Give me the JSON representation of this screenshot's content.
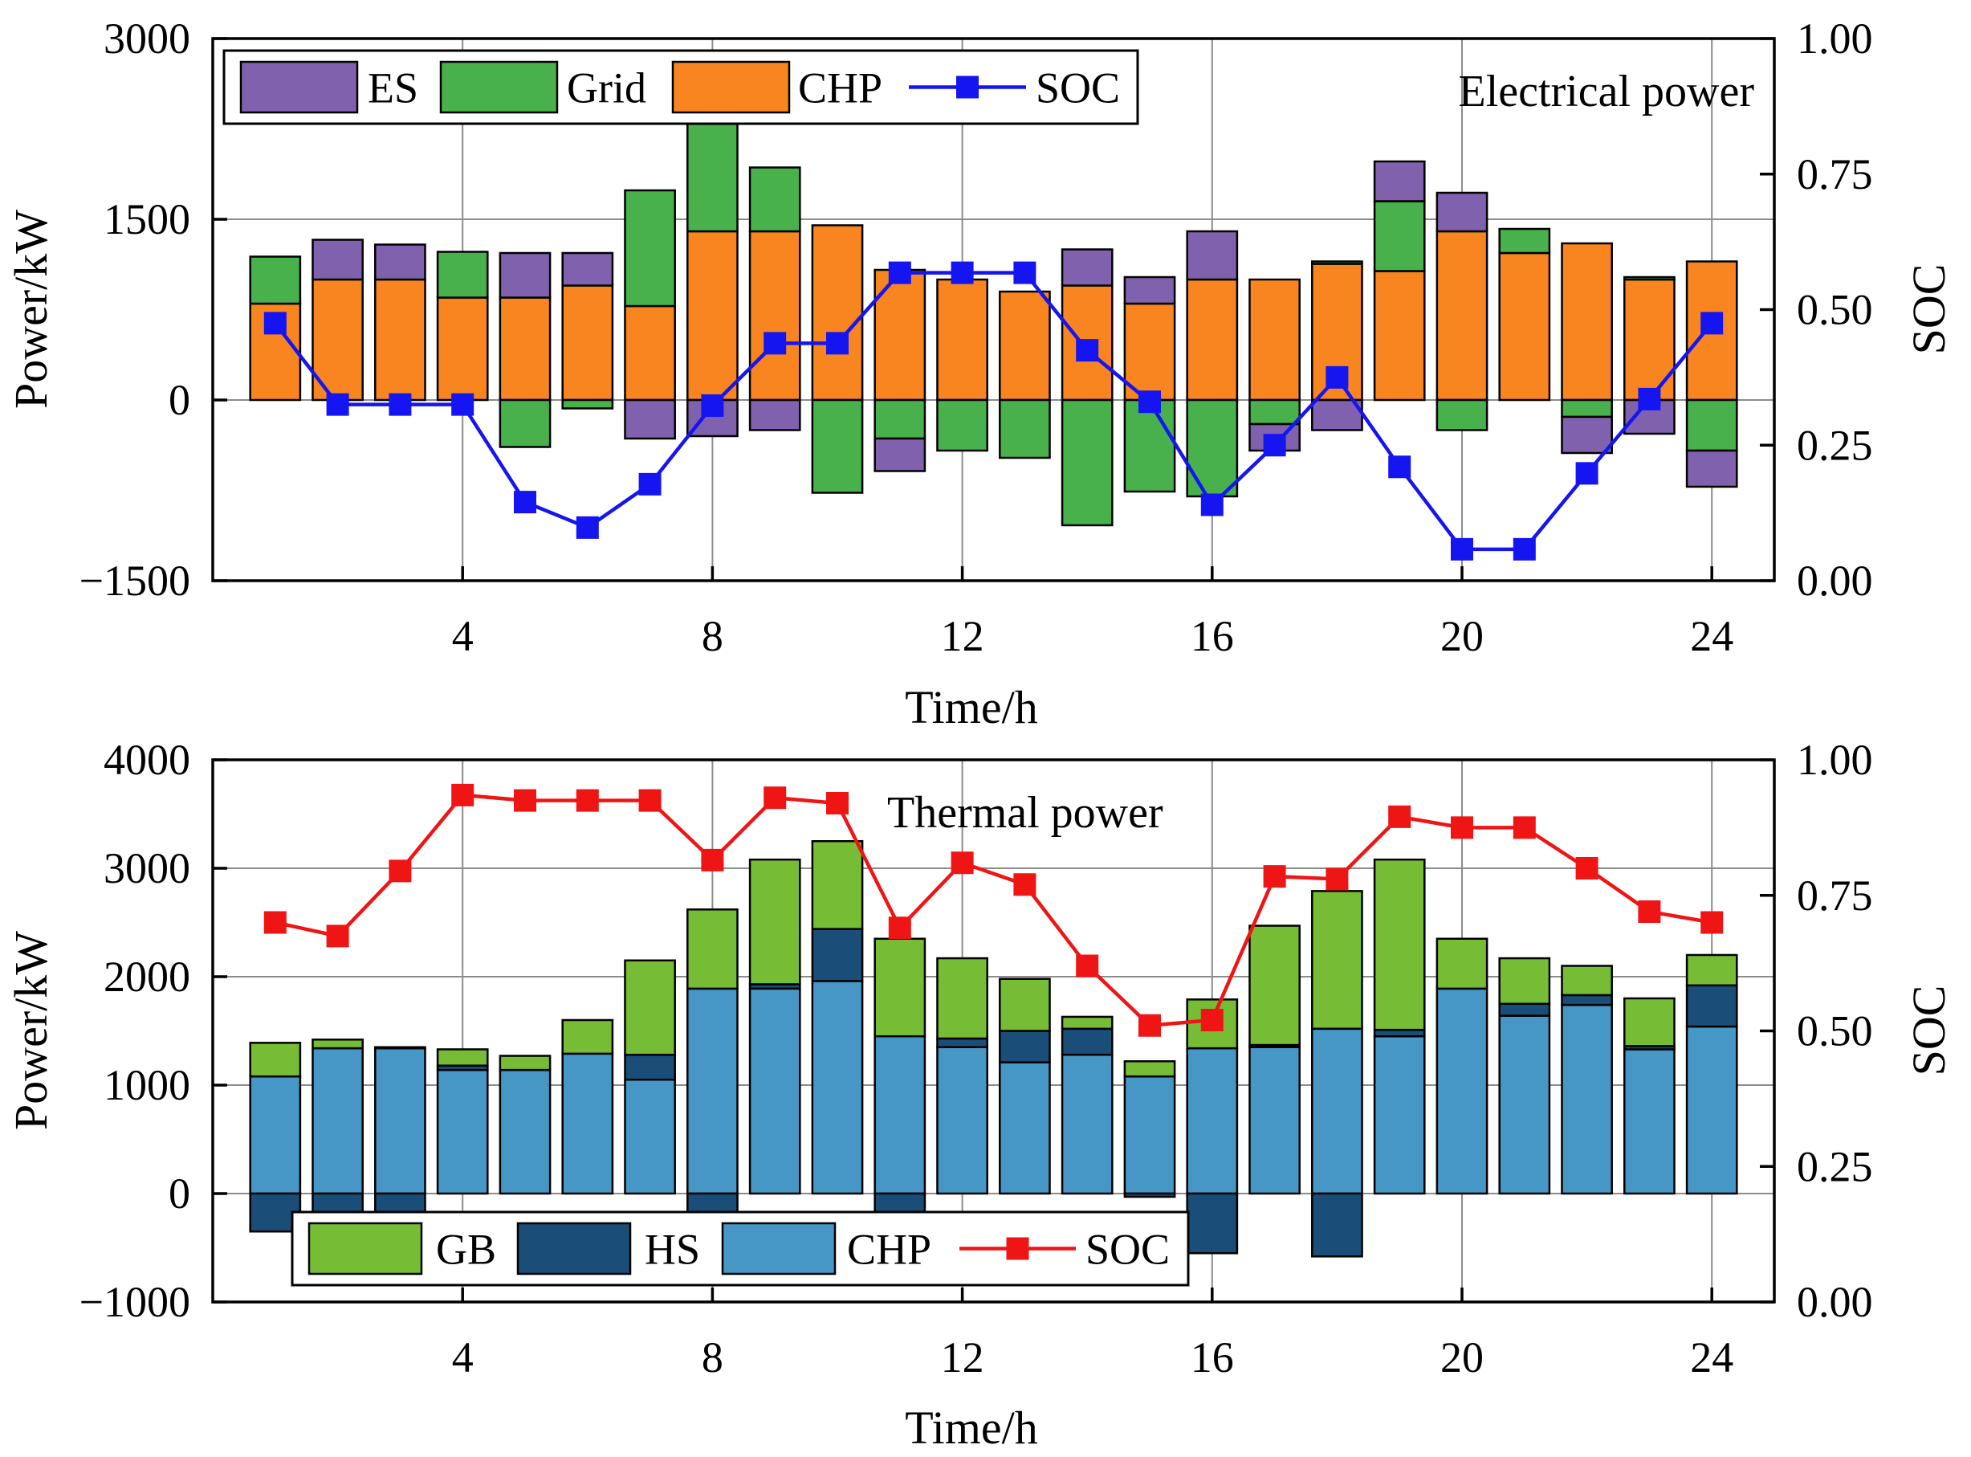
{
  "chart_data": [
    {
      "type": "bar",
      "stacking": "stacked",
      "annotation": "Electrical power",
      "xlabel": "Time/h",
      "ylabel": "Power/kW",
      "y2label": "SOC",
      "xlim": [
        0,
        25
      ],
      "ylim": [
        -1500,
        3000
      ],
      "y2lim": [
        0,
        1
      ],
      "x_ticks": [
        4,
        8,
        12,
        16,
        20,
        24
      ],
      "y_ticks": [
        -1500,
        0,
        1500,
        3000
      ],
      "y_tick_labels": [
        "−1500",
        "0",
        "1500",
        "3000"
      ],
      "y2_ticks": [
        0,
        0.25,
        0.5,
        0.75,
        1
      ],
      "y2_tick_labels": [
        "0.00",
        "0.25",
        "0.50",
        "0.75",
        "1.00"
      ],
      "grid": true,
      "legend_position": "top-left",
      "x": [
        1,
        2,
        3,
        4,
        5,
        6,
        7,
        8,
        9,
        10,
        11,
        12,
        13,
        14,
        15,
        16,
        17,
        18,
        19,
        20,
        21,
        22,
        23,
        24
      ],
      "series": [
        {
          "name": "CHP",
          "color": "#f98521",
          "role": "bar",
          "values": [
            800,
            1000,
            1000,
            850,
            850,
            950,
            780,
            1400,
            1400,
            1450,
            1080,
            1000,
            900,
            950,
            800,
            1000,
            1000,
            1130,
            1070,
            1400,
            1220,
            1300,
            1000,
            1150
          ]
        },
        {
          "name": "Grid",
          "color": "#48b14c",
          "role": "bar",
          "values": [
            390,
            0,
            0,
            380,
            -390,
            -70,
            960,
            1000,
            530,
            -770,
            -320,
            -420,
            -480,
            -1040,
            -760,
            -800,
            -200,
            20,
            580,
            -250,
            200,
            -140,
            20,
            -420
          ]
        },
        {
          "name": "ES",
          "color": "#8061ad",
          "role": "bar",
          "values": [
            0,
            330,
            290,
            0,
            370,
            270,
            -320,
            -300,
            -250,
            0,
            -270,
            0,
            0,
            300,
            220,
            400,
            -220,
            -250,
            330,
            320,
            0,
            -300,
            -280,
            -300
          ]
        },
        {
          "name": "SOC",
          "color": "#1515f2",
          "role": "line",
          "marker": "square",
          "axis": "right",
          "values": [
            0.475,
            0.325,
            0.325,
            0.325,
            0.145,
            0.098,
            0.178,
            0.323,
            0.438,
            0.438,
            0.568,
            0.568,
            0.568,
            0.425,
            0.33,
            0.14,
            0.25,
            0.375,
            0.21,
            0.058,
            0.058,
            0.198,
            0.335,
            0.475
          ]
        }
      ],
      "legend": [
        "ES",
        "Grid",
        "CHP",
        "SOC"
      ]
    },
    {
      "type": "bar",
      "stacking": "stacked",
      "annotation": "Thermal power",
      "xlabel": "Time/h",
      "ylabel": "Power/kW",
      "y2label": "SOC",
      "xlim": [
        0,
        25
      ],
      "ylim": [
        -1000,
        4000
      ],
      "y2lim": [
        0,
        1
      ],
      "x_ticks": [
        4,
        8,
        12,
        16,
        20,
        24
      ],
      "y_ticks": [
        -1000,
        0,
        1000,
        2000,
        3000,
        4000
      ],
      "y_tick_labels": [
        "−1000",
        "0",
        "1000",
        "2000",
        "3000",
        "4000"
      ],
      "y2_ticks": [
        0,
        0.25,
        0.5,
        0.75,
        1
      ],
      "y2_tick_labels": [
        "0.00",
        "0.25",
        "0.50",
        "0.75",
        "1.00"
      ],
      "grid": true,
      "legend_position": "bottom-left",
      "x": [
        1,
        2,
        3,
        4,
        5,
        6,
        7,
        8,
        9,
        10,
        11,
        12,
        13,
        14,
        15,
        16,
        17,
        18,
        19,
        20,
        21,
        22,
        23,
        24
      ],
      "series": [
        {
          "name": "CHP",
          "color": "#4797c6",
          "role": "bar",
          "values": [
            1080,
            1340,
            1340,
            1140,
            1140,
            1290,
            1050,
            1890,
            1890,
            1960,
            1450,
            1350,
            1210,
            1280,
            1080,
            1340,
            1350,
            1520,
            1450,
            1890,
            1640,
            1740,
            1330,
            1540
          ]
        },
        {
          "name": "HS",
          "color": "#1a4e78",
          "role": "bar",
          "values": [
            -350,
            -230,
            -230,
            40,
            0,
            0,
            230,
            -230,
            40,
            480,
            -220,
            80,
            290,
            240,
            -30,
            -550,
            20,
            -580,
            60,
            0,
            110,
            90,
            30,
            380
          ]
        },
        {
          "name": "GB",
          "color": "#76bd35",
          "role": "bar",
          "values": [
            310,
            80,
            10,
            150,
            130,
            310,
            870,
            730,
            1150,
            810,
            900,
            740,
            480,
            110,
            140,
            450,
            1100,
            1270,
            1570,
            460,
            420,
            270,
            440,
            280
          ]
        },
        {
          "name": "SOC",
          "color": "#f01515",
          "role": "line",
          "marker": "square",
          "axis": "right",
          "values": [
            0.7,
            0.675,
            0.795,
            0.935,
            0.925,
            0.925,
            0.925,
            0.815,
            0.93,
            0.92,
            0.69,
            0.81,
            0.77,
            0.62,
            0.51,
            0.52,
            0.785,
            0.78,
            0.895,
            0.875,
            0.875,
            0.8,
            0.72,
            0.7
          ]
        }
      ],
      "legend": [
        "GB",
        "HS",
        "CHP",
        "SOC"
      ]
    }
  ]
}
